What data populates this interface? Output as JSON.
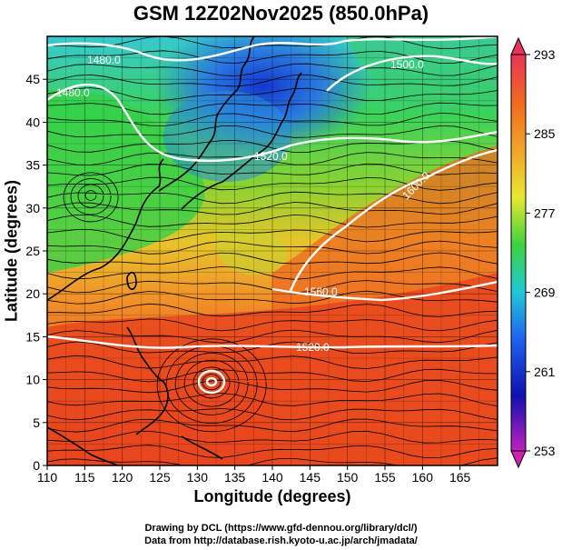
{
  "title": "GSM 12Z02Nov2025 (850.0hPa)",
  "xlabel": "Longitude (degrees)",
  "ylabel": "Latitude  (degrees)",
  "credits": [
    "Drawing by DCL (https://www.gfd-dennou.org/library/dcl/)",
    "Data from http://database.rish.kyoto-u.ac.jp/arch/jmadata/"
  ],
  "map": {
    "lon_range": [
      110,
      170
    ],
    "lat_range": [
      0,
      50
    ],
    "x_ticks": [
      "110",
      "115",
      "120",
      "125",
      "130",
      "135",
      "140",
      "145",
      "150",
      "155",
      "160",
      "165"
    ],
    "y_ticks": [
      "0",
      "5",
      "10",
      "15",
      "20",
      "25",
      "30",
      "35",
      "40",
      "45"
    ],
    "grid": true,
    "colors": {
      "cold": "#1a4bd6",
      "cool": "#2ad2c8",
      "mild": "#3cd23c",
      "warm": "#f0a020",
      "hot": "#e63a1e",
      "contour": "#ffffff",
      "coast": "#000000"
    }
  },
  "colorbar": {
    "min_label": "253",
    "max_label": "293",
    "labels": [
      "293",
      "285",
      "277",
      "269",
      "261",
      "253"
    ],
    "colors": [
      "#e8335a",
      "#f26a1e",
      "#f2a82a",
      "#e8e830",
      "#3ed23e",
      "#20c8d8",
      "#2060f0",
      "#1010b0",
      "#c020c0"
    ]
  },
  "contours": [
    {
      "label": "1480.0"
    },
    {
      "label": "1500.0"
    },
    {
      "label": "1480.0"
    },
    {
      "label": "1520.0"
    },
    {
      "label": "1560.0"
    },
    {
      "label": "1600.0"
    },
    {
      "label": "1520.0"
    }
  ]
}
